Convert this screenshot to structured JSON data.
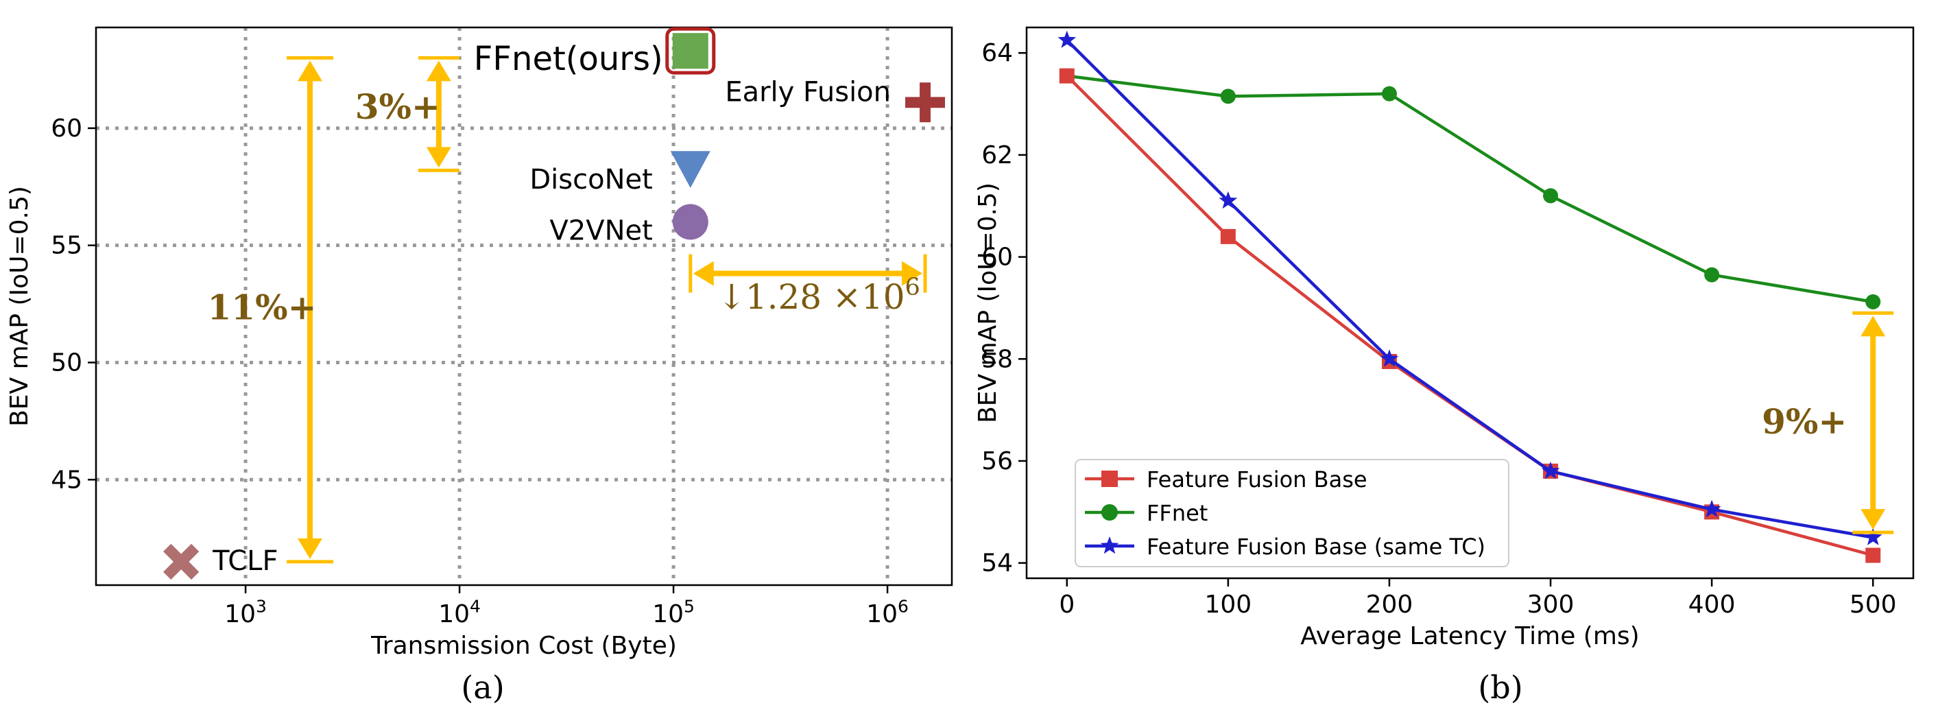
{
  "chart_data": [
    {
      "panel": "(a)",
      "type": "scatter",
      "xlabel": "Transmission Cost (Byte)",
      "ylabel": "BEV mAP (IoU=0.5)",
      "xscale": "log",
      "xlim": [
        200,
        2000000
      ],
      "ylim": [
        40.5,
        64.3
      ],
      "x_ticks": [
        {
          "value": 1000,
          "base": "10",
          "exp": "3"
        },
        {
          "value": 10000,
          "base": "10",
          "exp": "4"
        },
        {
          "value": 100000,
          "base": "10",
          "exp": "5"
        },
        {
          "value": 1000000,
          "base": "10",
          "exp": "6"
        }
      ],
      "y_ticks": [
        45,
        50,
        55,
        60
      ],
      "grid": true,
      "points": [
        {
          "label": "FFnet(ours)",
          "x": 120000,
          "y": 63.3,
          "marker": "square",
          "color": "#6aa84f",
          "highlight": "#b22222"
        },
        {
          "label": "Early Fusion",
          "x": 1500000,
          "y": 61.1,
          "marker": "plus",
          "color": "#a33a3a"
        },
        {
          "label": "DiscoNet",
          "x": 120000,
          "y": 58.3,
          "marker": "triangle-down",
          "color": "#5b86c5"
        },
        {
          "label": "V2VNet",
          "x": 120000,
          "y": 56.0,
          "marker": "circle",
          "color": "#8b6aa8"
        },
        {
          "label": "TCLF",
          "x": 500,
          "y": 41.5,
          "marker": "x",
          "color": "#b07070"
        }
      ],
      "annotations": [
        {
          "text": "11%+",
          "type": "vertical-range",
          "x": 2000,
          "y_from": 41.5,
          "y_to": 63.0
        },
        {
          "text": "3%+",
          "type": "vertical-range",
          "x": 8000,
          "y_from": 58.2,
          "y_to": 63.0
        },
        {
          "text": "1.28 ×10",
          "exp": "6",
          "arrow": "↓",
          "type": "horizontal-range",
          "y": 53.8,
          "x_from": 120000,
          "x_to": 1500000
        }
      ],
      "annotation_color": "#ffbf00"
    },
    {
      "panel": "(b)",
      "type": "line",
      "xlabel": "Average Latency Time (ms)",
      "ylabel": "BEV mAP (IoU=0.5)",
      "xlim": [
        -25,
        525
      ],
      "ylim": [
        53.7,
        64.5
      ],
      "x_ticks": [
        0,
        100,
        200,
        300,
        400,
        500
      ],
      "y_ticks": [
        54,
        56,
        58,
        60,
        62,
        64
      ],
      "grid": false,
      "legend_position": "bottom-left",
      "series": [
        {
          "name": "Feature Fusion Base",
          "color": "#d9403a",
          "marker": "square",
          "x": [
            0,
            100,
            200,
            300,
            400,
            500
          ],
          "y": [
            63.55,
            60.4,
            57.95,
            55.8,
            55.0,
            54.15
          ]
        },
        {
          "name": "FFnet",
          "color": "#1a8a1a",
          "marker": "circle",
          "x": [
            0,
            100,
            200,
            300,
            400,
            500
          ],
          "y": [
            63.55,
            63.15,
            63.2,
            61.2,
            59.65,
            59.12
          ]
        },
        {
          "name": "Feature Fusion Base (same TC)",
          "color": "#1f1fd0",
          "marker": "star",
          "x": [
            0,
            100,
            200,
            300,
            400,
            500
          ],
          "y": [
            64.25,
            61.1,
            58.0,
            55.8,
            55.05,
            54.5
          ]
        }
      ],
      "annotations": [
        {
          "text": "9%+",
          "type": "vertical-range",
          "x": 500,
          "y_from": 54.6,
          "y_to": 58.9
        }
      ],
      "annotation_color": "#ffbf00"
    }
  ]
}
